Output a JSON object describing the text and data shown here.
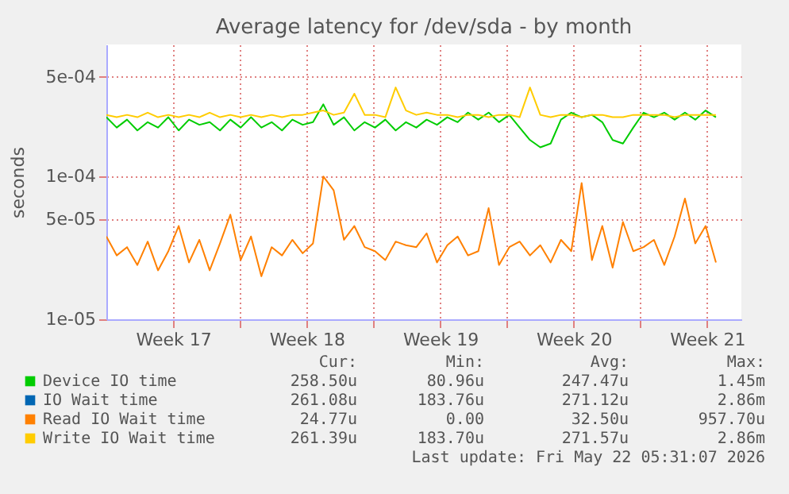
{
  "chart_data": {
    "type": "line",
    "title": "Average latency for /dev/sda - by month",
    "ylabel": "seconds",
    "log": true,
    "grid": true,
    "legend": "bottom",
    "marker": "none",
    "line_style": "solid",
    "xlim": [
      "2026-04-20T00:00",
      "2026-05-23T07:00"
    ],
    "ylim": [
      1e-05,
      0.00084
    ],
    "xticks": [
      {
        "value": "2026-04-23T12:00",
        "label": "Week 17"
      },
      {
        "value": "2026-04-27T00:00",
        "label": null
      },
      {
        "value": "2026-04-30T12:00",
        "label": "Week 18"
      },
      {
        "value": "2026-05-04T00:00",
        "label": null
      },
      {
        "value": "2026-05-07T12:00",
        "label": "Week 19"
      },
      {
        "value": "2026-05-11T00:00",
        "label": null
      },
      {
        "value": "2026-05-14T12:00",
        "label": "Week 20"
      },
      {
        "value": "2026-05-18T00:00",
        "label": null
      },
      {
        "value": "2026-05-21T12:00",
        "label": "Week 21"
      }
    ],
    "yticks": [
      {
        "value": 1e-05,
        "label": "1e-05"
      },
      {
        "value": 5e-05,
        "label": "5e-05"
      },
      {
        "value": 0.0001,
        "label": "1e-04"
      },
      {
        "value": 0.0005,
        "label": "5e-04"
      }
    ],
    "x": [
      "2026-04-20T00:00",
      "2026-04-20T13:00",
      "2026-04-21T02:00",
      "2026-04-21T15:00",
      "2026-04-22T04:00",
      "2026-04-22T17:00",
      "2026-04-23T06:00",
      "2026-04-23T19:00",
      "2026-04-24T08:00",
      "2026-04-24T21:00",
      "2026-04-25T10:00",
      "2026-04-25T23:00",
      "2026-04-26T12:00",
      "2026-04-27T01:00",
      "2026-04-27T14:00",
      "2026-04-28T03:00",
      "2026-04-28T16:00",
      "2026-04-29T05:00",
      "2026-04-29T18:00",
      "2026-04-30T07:00",
      "2026-04-30T20:00",
      "2026-05-01T09:00",
      "2026-05-01T22:00",
      "2026-05-02T11:00",
      "2026-05-03T00:00",
      "2026-05-03T13:00",
      "2026-05-04T02:00",
      "2026-05-04T15:00",
      "2026-05-05T04:00",
      "2026-05-05T17:00",
      "2026-05-06T06:00",
      "2026-05-06T19:00",
      "2026-05-07T08:00",
      "2026-05-07T21:00",
      "2026-05-08T10:00",
      "2026-05-08T23:00",
      "2026-05-09T12:00",
      "2026-05-10T01:00",
      "2026-05-10T14:00",
      "2026-05-11T03:00",
      "2026-05-11T16:00",
      "2026-05-12T05:00",
      "2026-05-12T18:00",
      "2026-05-13T07:00",
      "2026-05-13T20:00",
      "2026-05-14T09:00",
      "2026-05-14T22:00",
      "2026-05-15T11:00",
      "2026-05-16T00:00",
      "2026-05-16T13:00",
      "2026-05-17T02:00",
      "2026-05-17T15:00",
      "2026-05-18T04:00",
      "2026-05-18T17:00",
      "2026-05-19T06:00",
      "2026-05-19T19:00",
      "2026-05-20T08:00",
      "2026-05-20T21:00",
      "2026-05-21T10:00",
      "2026-05-21T23:00"
    ],
    "series": [
      {
        "name": "Device IO time",
        "color": "#00cc00",
        "values": [
          0.00026,
          0.00022,
          0.00025,
          0.00021,
          0.00024,
          0.00022,
          0.00026,
          0.00021,
          0.00025,
          0.00023,
          0.00024,
          0.00021,
          0.00025,
          0.00022,
          0.00026,
          0.00022,
          0.00024,
          0.00021,
          0.00025,
          0.00023,
          0.00024,
          0.00032,
          0.00023,
          0.00026,
          0.00021,
          0.00024,
          0.00022,
          0.00025,
          0.00021,
          0.00024,
          0.00022,
          0.00025,
          0.00023,
          0.00026,
          0.00024,
          0.00028,
          0.00025,
          0.00028,
          0.00024,
          0.00027,
          0.00022,
          0.00018,
          0.00016,
          0.00017,
          0.00025,
          0.00028,
          0.00026,
          0.00027,
          0.00024,
          0.00018,
          0.00017,
          0.00022,
          0.00028,
          0.00026,
          0.00028,
          0.00025,
          0.00028,
          0.00025,
          0.00029,
          0.00026
        ]
      },
      {
        "name": "IO Wait time",
        "color": "#0066b3",
        "values": [
          null,
          null,
          null,
          null,
          null,
          null,
          null,
          null,
          null,
          null,
          null,
          null,
          null,
          null,
          null,
          null,
          null,
          null,
          null,
          null,
          null,
          null,
          null,
          null,
          null,
          null,
          null,
          null,
          null,
          null,
          null,
          null,
          null,
          null,
          null,
          null,
          null,
          null,
          null,
          null,
          null,
          null,
          null,
          null,
          null,
          null,
          null,
          null,
          null,
          null,
          null,
          null,
          null,
          null,
          null,
          null,
          null,
          null,
          null,
          null
        ]
      },
      {
        "name": "Read IO Wait time",
        "color": "#ff8000",
        "values": [
          3.8e-05,
          2.8e-05,
          3.2e-05,
          2.4e-05,
          3.5e-05,
          2.2e-05,
          3e-05,
          4.5e-05,
          2.5e-05,
          3.6e-05,
          2.2e-05,
          3.4e-05,
          5.4e-05,
          2.6e-05,
          3.8e-05,
          2e-05,
          3.2e-05,
          2.8e-05,
          3.6e-05,
          2.9e-05,
          3.4e-05,
          0.0001,
          8e-05,
          3.6e-05,
          4.5e-05,
          3.2e-05,
          3e-05,
          2.6e-05,
          3.5e-05,
          3.3e-05,
          3.2e-05,
          4e-05,
          2.5e-05,
          3.3e-05,
          3.8e-05,
          2.8e-05,
          3e-05,
          6e-05,
          2.4e-05,
          3.2e-05,
          3.5e-05,
          2.8e-05,
          3.3e-05,
          2.5e-05,
          3.6e-05,
          3e-05,
          9e-05,
          2.6e-05,
          4.5e-05,
          2.3e-05,
          4.8e-05,
          3e-05,
          3.2e-05,
          3.6e-05,
          2.4e-05,
          3.8e-05,
          7e-05,
          3.4e-05,
          4.5e-05,
          2.5e-05
        ]
      },
      {
        "name": "Write IO Wait time",
        "color": "#ffcc00",
        "values": [
          0.00027,
          0.00026,
          0.00027,
          0.00026,
          0.00028,
          0.00026,
          0.00027,
          0.00026,
          0.00027,
          0.00026,
          0.00028,
          0.00026,
          0.00027,
          0.00026,
          0.00027,
          0.00026,
          0.00027,
          0.00026,
          0.00027,
          0.00027,
          0.00028,
          0.00029,
          0.00027,
          0.00028,
          0.00038,
          0.00027,
          0.00027,
          0.00026,
          0.00042,
          0.00029,
          0.00027,
          0.00028,
          0.00027,
          0.00027,
          0.00026,
          0.00027,
          0.00027,
          0.00026,
          0.00027,
          0.00027,
          0.00026,
          0.00042,
          0.00027,
          0.00026,
          0.00027,
          0.00027,
          0.00026,
          0.00027,
          0.00027,
          0.00026,
          0.00026,
          0.00027,
          0.00027,
          0.00027,
          0.00027,
          0.00026,
          0.00027,
          0.00027,
          0.00027,
          0.00027
        ]
      }
    ],
    "annotations": [
      "Cur:",
      "Min:",
      "Avg:",
      "Max:",
      "258.50u",
      "80.96u",
      "247.47u",
      "1.45m",
      "261.08u",
      "183.76u",
      "271.12u",
      "2.86m",
      "24.77u",
      "0.00",
      "32.50u",
      "957.70u",
      "261.39u",
      "183.70u",
      "271.57u",
      "2.86m",
      "Last update: Fri May 22 05:31:07 2026"
    ]
  }
}
